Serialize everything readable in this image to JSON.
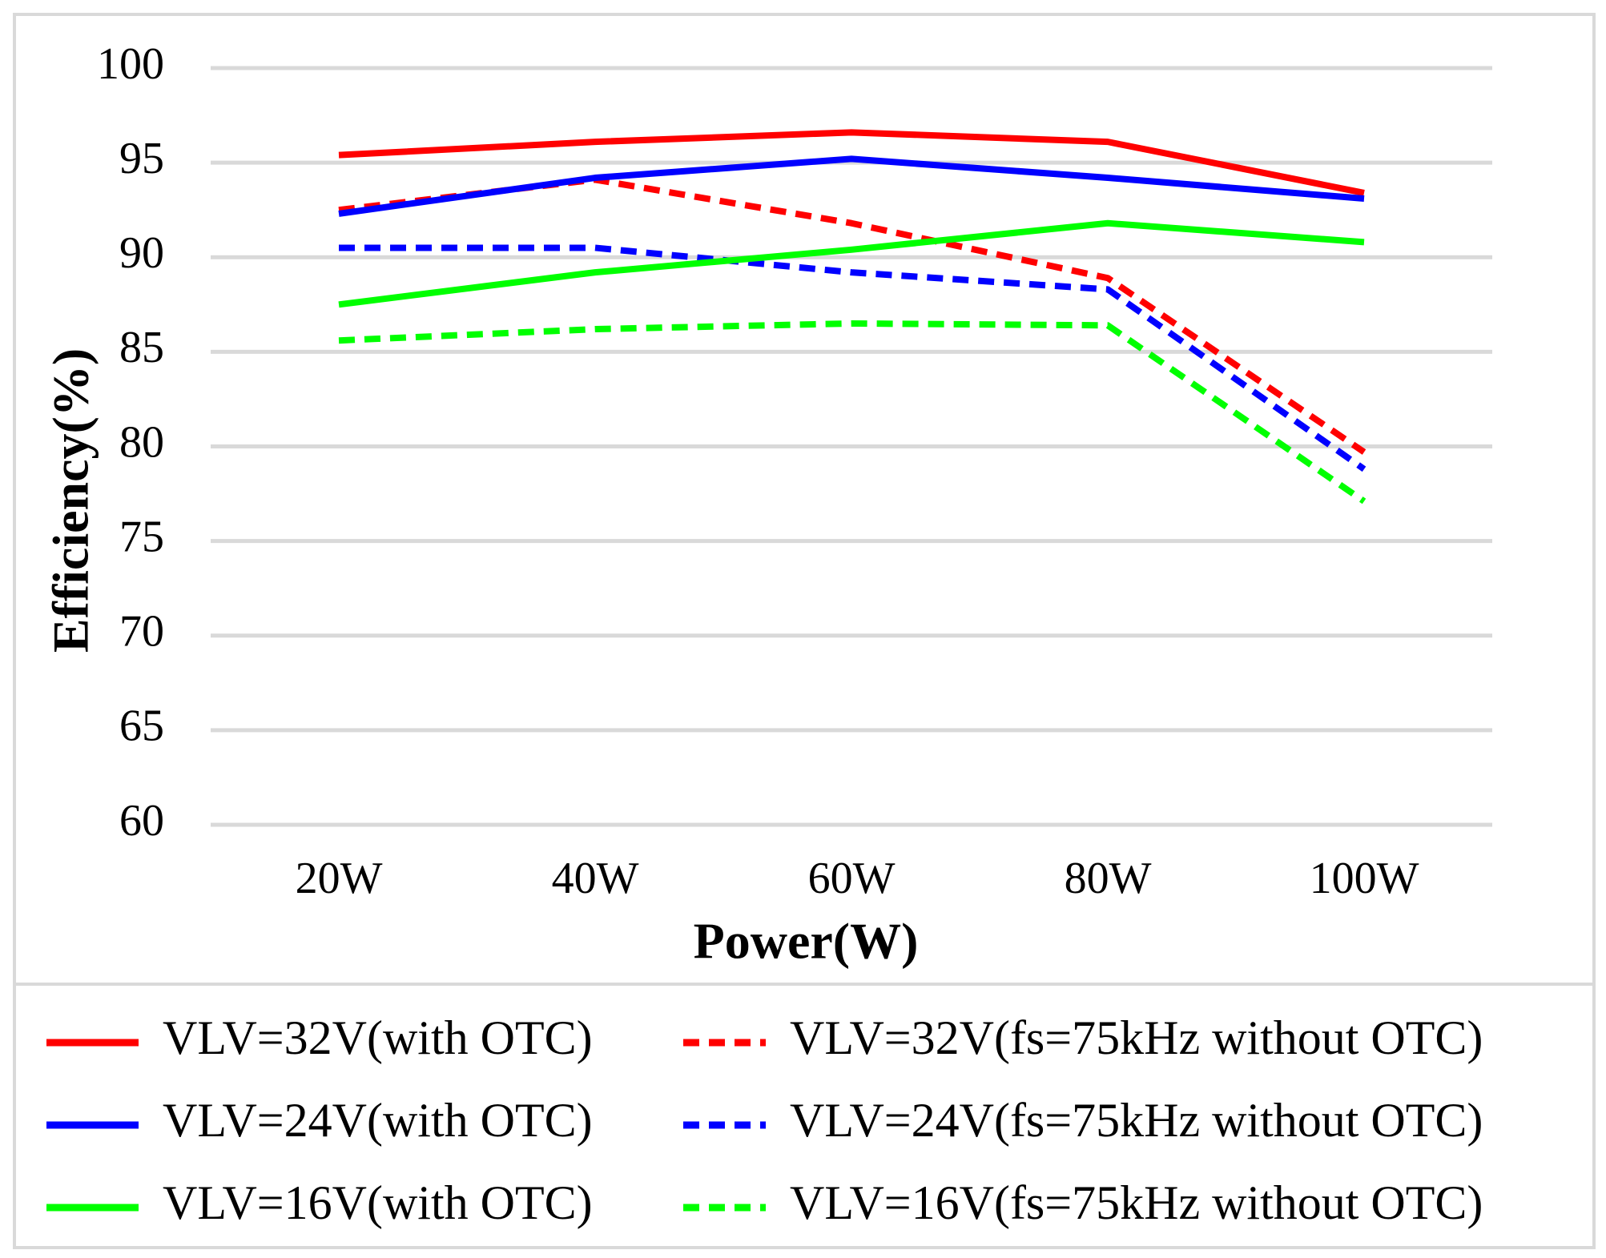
{
  "chart_data": {
    "type": "line",
    "x_label": "Power(W)",
    "y_label": "Efficiency(%)",
    "categories": [
      "20W",
      "40W",
      "60W",
      "80W",
      "100W"
    ],
    "ylim": [
      60,
      100
    ],
    "yticks": [
      60,
      65,
      70,
      75,
      80,
      85,
      90,
      95,
      100
    ],
    "grid": true,
    "series": [
      {
        "name": "VLV=32V(with OTC)",
        "color": "#ff0000",
        "dash": false,
        "values": [
          95.4,
          96.1,
          96.6,
          96.1,
          93.4
        ]
      },
      {
        "name": "VLV=32V(fs=75kHz without OTC)",
        "color": "#ff0000",
        "dash": true,
        "values": [
          92.5,
          94.1,
          91.8,
          88.9,
          79.7
        ]
      },
      {
        "name": "VLV=24V(with OTC)",
        "color": "#0000ff",
        "dash": false,
        "values": [
          92.3,
          94.2,
          95.2,
          94.2,
          93.1
        ]
      },
      {
        "name": "VLV=24V(fs=75kHz without OTC)",
        "color": "#0000ff",
        "dash": true,
        "values": [
          90.5,
          90.5,
          89.2,
          88.3,
          78.8
        ]
      },
      {
        "name": "VLV=16V(with OTC)",
        "color": "#00ff00",
        "dash": false,
        "values": [
          87.5,
          89.2,
          90.4,
          91.8,
          90.8
        ]
      },
      {
        "name": "VLV=16V(fs=75kHz without OTC)",
        "color": "#00ff00",
        "dash": true,
        "values": [
          85.6,
          86.2,
          86.5,
          86.4,
          77.1
        ]
      }
    ]
  }
}
